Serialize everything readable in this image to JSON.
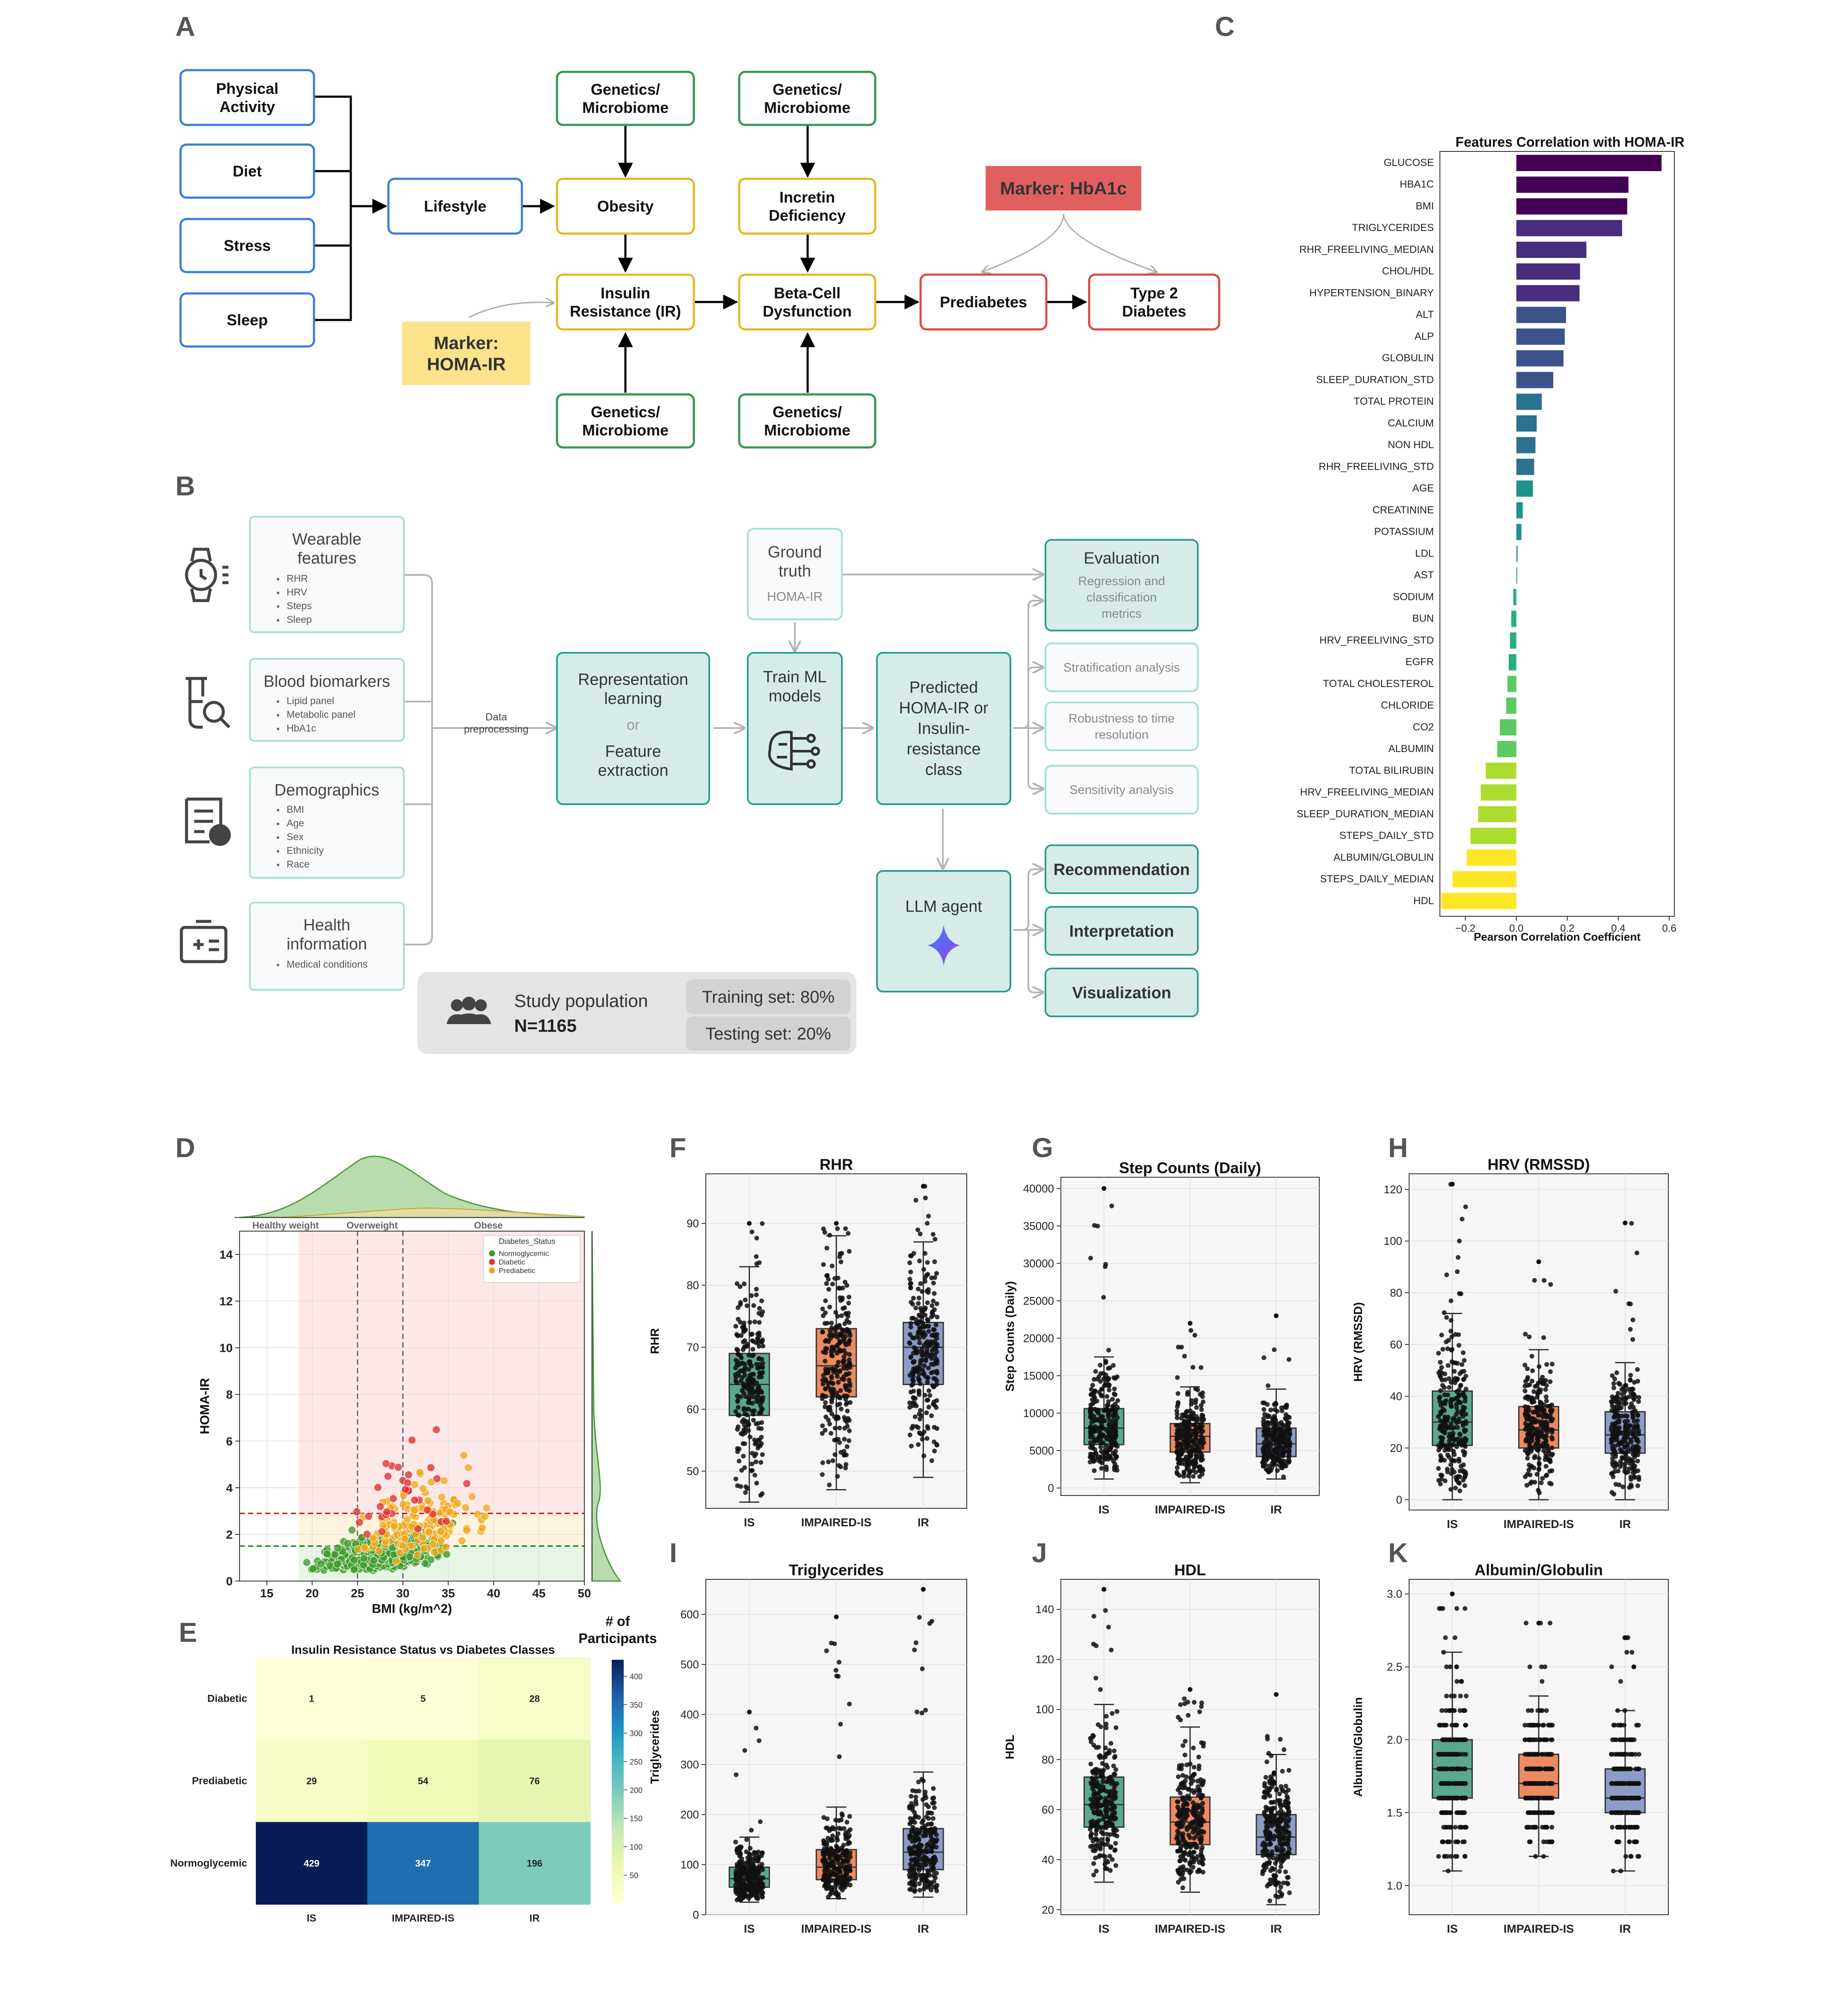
{
  "panel_letters": [
    "A",
    "B",
    "C",
    "D",
    "E",
    "F",
    "G",
    "H",
    "I",
    "J",
    "K"
  ],
  "panelA": {
    "nodes": {
      "physical_activity": "Physical\nActivity",
      "diet": "Diet",
      "stress": "Stress",
      "sleep": "Sleep",
      "lifestyle": "Lifestyle",
      "obesity": "Obesity",
      "insulin_resistance": "Insulin\nResistance (IR)",
      "incretin": "Incretin\nDeficiency",
      "beta_cell": "Beta-Cell\nDysfunction",
      "prediabetes": "Prediabetes",
      "t2d": "Type 2\nDiabetes",
      "genetics": "Genetics/\nMicrobiome",
      "marker_homa": "Marker:\nHOMA-IR",
      "marker_hba1c": "Marker: HbA1c"
    }
  },
  "panelB": {
    "inputs": [
      {
        "title": "Wearable\nfeatures",
        "items": [
          "RHR",
          "HRV",
          "Steps",
          "Sleep"
        ]
      },
      {
        "title": "Blood biomarkers",
        "items": [
          "Lipid panel",
          "Metabolic panel",
          "HbA1c"
        ]
      },
      {
        "title": "Demographics",
        "items": [
          "BMI",
          "Age",
          "Sex",
          "Ethnicity",
          "Race"
        ]
      },
      {
        "title": "Health\ninformation",
        "items": [
          "Medical conditions"
        ]
      }
    ],
    "data_preprocessing": "Data\npreprocessing",
    "representation": {
      "line1": "Representation\nlearning",
      "or": "or",
      "line2": "Feature\nextraction"
    },
    "ground_truth": {
      "title": "Ground\ntruth",
      "sub": "HOMA-IR"
    },
    "train": "Train ML\nmodels",
    "predicted": "Predicted\nHOMA-IR or\nInsulin-\nresistance\nclass",
    "evaluation": {
      "title": "Evaluation",
      "sub": "Regression and\nclassification\nmetrics"
    },
    "analyses": [
      "Stratification analysis",
      "Robustness to time\nresolution",
      "Sensitivity analysis"
    ],
    "llm": "LLM agent",
    "outputs": [
      "Recommendation",
      "Interpretation",
      "Visualization"
    ],
    "study": {
      "label": "Study population",
      "n": "N=1165",
      "train": "Training set: 80%",
      "test": "Testing set: 20%"
    }
  },
  "chart_data": [
    {
      "id": "C",
      "type": "bar",
      "orientation": "horizontal",
      "title": "Features Correlation with HOMA-IR",
      "xlabel": "Pearson Correlation Coefficient",
      "xlim": [
        -0.3,
        0.62
      ],
      "xticks": [
        -0.2,
        0.0,
        0.2,
        0.4,
        0.6
      ],
      "xtick_labels": [
        "−0.2",
        "0.0",
        "0.2",
        "0.4",
        "0.6"
      ],
      "categories": [
        "GLUCOSE",
        "HBA1C",
        "BMI",
        "TRIGLYCERIDES",
        "RHR_FREELIVING_MEDIAN",
        "CHOL/HDL",
        "HYPERTENSION_BINARY",
        "ALT",
        "ALP",
        "GLOBULIN",
        "SLEEP_DURATION_STD",
        "TOTAL PROTEIN",
        "CALCIUM",
        "NON HDL",
        "RHR_FREELIVING_STD",
        "AGE",
        "CREATININE",
        "POTASSIUM",
        "LDL",
        "AST",
        "SODIUM",
        "BUN",
        "HRV_FREELIVING_STD",
        "EGFR",
        "TOTAL CHOLESTEROL",
        "CHLORIDE",
        "CO2",
        "ALBUMIN",
        "TOTAL BILIRUBIN",
        "HRV_FREELIVING_MEDIAN",
        "SLEEP_DURATION_MEDIAN",
        "STEPS_DAILY_STD",
        "ALBUMIN/GLOBULIN",
        "STEPS_DAILY_MEDIAN",
        "HDL"
      ],
      "values": [
        0.57,
        0.44,
        0.435,
        0.415,
        0.275,
        0.25,
        0.248,
        0.195,
        0.19,
        0.185,
        0.145,
        0.1,
        0.08,
        0.075,
        0.07,
        0.065,
        0.025,
        0.02,
        0.005,
        0.0,
        -0.012,
        -0.02,
        -0.025,
        -0.03,
        -0.035,
        -0.04,
        -0.065,
        -0.075,
        -0.12,
        -0.14,
        -0.15,
        -0.18,
        -0.195,
        -0.25,
        -0.295
      ]
    },
    {
      "id": "D",
      "type": "scatter",
      "xlabel": "BMI (kg/m^2)",
      "ylabel": "HOMA-IR",
      "xlim": [
        12,
        50
      ],
      "ylim": [
        0,
        15
      ],
      "xticks": [
        15,
        20,
        25,
        30,
        35,
        40,
        45,
        50
      ],
      "yticks": [
        0,
        2,
        4,
        6,
        8,
        10,
        12,
        14
      ],
      "zones": [
        "Healthy weight",
        "Overweight",
        "Obese"
      ],
      "zone_bounds": [
        25,
        30
      ],
      "thresholds": [
        1.5,
        2.9
      ],
      "legend_title": "Diabetes_Status",
      "legend": [
        "Normoglycemic",
        "Diabetic",
        "Prediabetic"
      ],
      "colors": {
        "Normoglycemic": "#3c9a28",
        "Diabetic": "#e03030",
        "Prediabetic": "#f0a818"
      }
    },
    {
      "id": "E",
      "type": "heatmap",
      "title": "Insulin Resistance Status vs Diabetes Classes",
      "rows": [
        "Diabetic",
        "Prediabetic",
        "Normoglycemic"
      ],
      "cols": [
        "IS",
        "IMPAIRED-IS",
        "IR"
      ],
      "values": [
        [
          1,
          5,
          28
        ],
        [
          29,
          54,
          76
        ],
        [
          429,
          347,
          196
        ]
      ],
      "colorbar_label": "# of\nParticipants",
      "colorbar_ticks": [
        50,
        100,
        150,
        200,
        250,
        300,
        350,
        400
      ],
      "vmax": 429
    },
    {
      "id": "F",
      "type": "box",
      "title": "RHR",
      "ylabel": "RHR",
      "categories": [
        "IS",
        "IMPAIRED-IS",
        "IR"
      ],
      "ylim": [
        44,
        98
      ],
      "yticks": [
        50,
        60,
        70,
        80,
        90
      ],
      "boxes": [
        {
          "q1": 59,
          "med": 64,
          "q3": 69,
          "lo": 45,
          "hi": 83,
          "fmin": 45,
          "fmax": 90
        },
        {
          "q1": 62,
          "med": 67,
          "q3": 73,
          "lo": 47,
          "hi": 88,
          "fmin": 47,
          "fmax": 90
        },
        {
          "q1": 64,
          "med": 70,
          "q3": 74,
          "lo": 49,
          "hi": 87,
          "fmin": 49,
          "fmax": 96
        }
      ]
    },
    {
      "id": "G",
      "type": "box",
      "title": "Step Counts (Daily)",
      "ylabel": "Step Counts (Daily)",
      "categories": [
        "IS",
        "IMPAIRED-IS",
        "IR"
      ],
      "ylim": [
        -1000,
        41500
      ],
      "yticks": [
        0,
        5000,
        10000,
        15000,
        20000,
        25000,
        30000,
        35000,
        40000
      ],
      "boxes": [
        {
          "q1": 5800,
          "med": 8000,
          "q3": 10600,
          "lo": 1200,
          "hi": 17500,
          "fmin": 1200,
          "fmax": 40000
        },
        {
          "q1": 4800,
          "med": 6900,
          "q3": 8600,
          "lo": 700,
          "hi": 13500,
          "fmin": 700,
          "fmax": 22000
        },
        {
          "q1": 4200,
          "med": 5900,
          "q3": 8000,
          "lo": 1200,
          "hi": 13200,
          "fmin": 1200,
          "fmax": 23000
        }
      ]
    },
    {
      "id": "H",
      "type": "box",
      "title": "HRV (RMSSD)",
      "ylabel": "HRV (RMSSD)",
      "categories": [
        "IS",
        "IMPAIRED-IS",
        "IR"
      ],
      "ylim": [
        -4,
        126
      ],
      "yticks": [
        0,
        20,
        40,
        60,
        80,
        100,
        120
      ],
      "boxes": [
        {
          "q1": 21,
          "med": 30,
          "q3": 42,
          "lo": 0,
          "hi": 72,
          "fmin": 0,
          "fmax": 122
        },
        {
          "q1": 20,
          "med": 27,
          "q3": 36,
          "lo": 0,
          "hi": 58,
          "fmin": 0,
          "fmax": 92
        },
        {
          "q1": 18,
          "med": 25,
          "q3": 34,
          "lo": 0,
          "hi": 53,
          "fmin": 0,
          "fmax": 107
        }
      ]
    },
    {
      "id": "I",
      "type": "box",
      "title": "Triglycerides",
      "ylabel": "Triglycerides",
      "categories": [
        "IS",
        "IMPAIRED-IS",
        "IR"
      ],
      "ylim": [
        0,
        670
      ],
      "yticks": [
        0,
        100,
        200,
        300,
        400,
        500,
        600
      ],
      "boxes": [
        {
          "q1": 55,
          "med": 72,
          "q3": 95,
          "lo": 25,
          "hi": 155,
          "fmin": 25,
          "fmax": 405
        },
        {
          "q1": 70,
          "med": 95,
          "q3": 130,
          "lo": 32,
          "hi": 215,
          "fmin": 32,
          "fmax": 595
        },
        {
          "q1": 90,
          "med": 125,
          "q3": 172,
          "lo": 35,
          "hi": 285,
          "fmin": 35,
          "fmax": 650
        }
      ]
    },
    {
      "id": "J",
      "type": "box",
      "title": "HDL",
      "ylabel": "HDL",
      "categories": [
        "IS",
        "IMPAIRED-IS",
        "IR"
      ],
      "ylim": [
        18,
        152
      ],
      "yticks": [
        20,
        40,
        60,
        80,
        100,
        120,
        140
      ],
      "boxes": [
        {
          "q1": 53,
          "med": 62,
          "q3": 73,
          "lo": 31,
          "hi": 102,
          "fmin": 31,
          "fmax": 148
        },
        {
          "q1": 46,
          "med": 55,
          "q3": 65,
          "lo": 27,
          "hi": 93,
          "fmin": 27,
          "fmax": 108
        },
        {
          "q1": 42,
          "med": 49,
          "q3": 58,
          "lo": 22,
          "hi": 82,
          "fmin": 22,
          "fmax": 106
        }
      ]
    },
    {
      "id": "K",
      "type": "box",
      "title": "Albumin/Globulin",
      "ylabel": "Albumin/Globulin",
      "categories": [
        "IS",
        "IMPAIRED-IS",
        "IR"
      ],
      "ylim": [
        0.8,
        3.1
      ],
      "yticks": [
        1.0,
        1.5,
        2.0,
        2.5,
        3.0
      ],
      "boxes": [
        {
          "q1": 1.6,
          "med": 1.8,
          "q3": 2.0,
          "lo": 1.1,
          "hi": 2.6,
          "fmin": 1.0,
          "fmax": 3.0
        },
        {
          "q1": 1.6,
          "med": 1.7,
          "q3": 1.9,
          "lo": 1.2,
          "hi": 2.3,
          "fmin": 1.2,
          "fmax": 2.8
        },
        {
          "q1": 1.5,
          "med": 1.6,
          "q3": 1.8,
          "lo": 1.1,
          "hi": 2.2,
          "fmin": 0.9,
          "fmax": 2.7
        }
      ]
    }
  ],
  "colors": {
    "blue_box": "#3b7dd8",
    "green_box": "#2f9a4f",
    "yellow_box": "#e8b820",
    "red_box": "#d84a48",
    "marker_homa_fill": "#fde28c",
    "marker_hba1c_fill": "#e06060",
    "teal": "#2a9d8f",
    "teal_fill": "#d7ece9",
    "box_is": "#5aa98c",
    "box_imp": "#ec8a62",
    "box_ir": "#8c9cc6"
  }
}
